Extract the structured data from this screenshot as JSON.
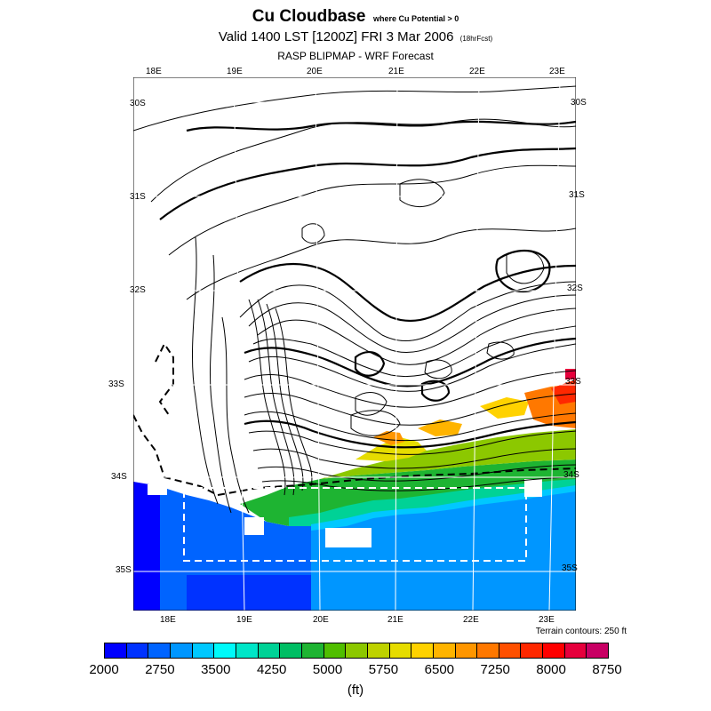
{
  "header": {
    "title": "Cu Cloudbase",
    "title_suffix": "where Cu Potential > 0",
    "valid_line": "Valid 1400 LST [1200Z] FRI 3 Mar 2006",
    "forecast_note": "(18hrFcst)",
    "model_line": "RASP BLIPMAP - WRF Forecast"
  },
  "map": {
    "lon_labels_top": [
      "18E",
      "19E",
      "20E",
      "21E",
      "22E",
      "23E"
    ],
    "lon_labels_bottom": [
      "18E",
      "19E",
      "20E",
      "21E",
      "22E",
      "23E"
    ],
    "lat_labels_left": [
      "30S",
      "31S",
      "32S",
      "33S",
      "34S",
      "35S"
    ],
    "lat_labels_right": [
      "30S",
      "31S",
      "32S",
      "33S",
      "34S",
      "35S"
    ],
    "terrain_note": "Terrain contours: 250 ft"
  },
  "colorbar": {
    "colors": [
      "#0000ff",
      "#0032ff",
      "#0064ff",
      "#0096ff",
      "#00c8ff",
      "#00fafa",
      "#00e6c8",
      "#00d296",
      "#00be64",
      "#1eb432",
      "#50be00",
      "#8cc800",
      "#bed200",
      "#e6dc00",
      "#ffd200",
      "#ffb400",
      "#ff9600",
      "#ff7800",
      "#ff5000",
      "#ff2800",
      "#ff0000",
      "#e6003c",
      "#c80064"
    ],
    "tick_labels": [
      "2000",
      "2750",
      "3500",
      "4250",
      "5000",
      "5750",
      "6500",
      "7250",
      "8000",
      "8750"
    ],
    "units": "(ft)"
  }
}
